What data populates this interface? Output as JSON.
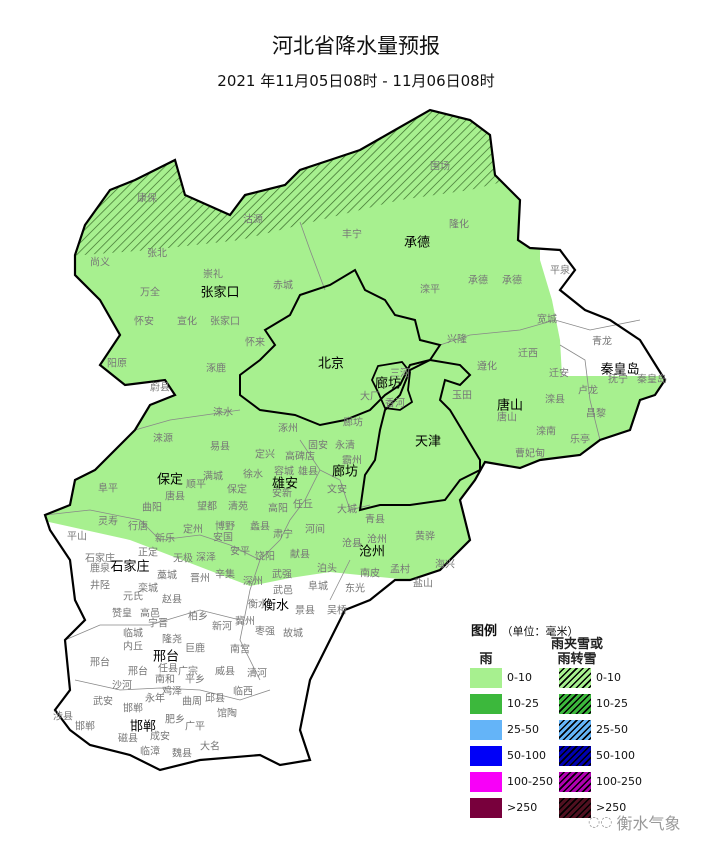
{
  "title": "河北省降水量预报",
  "subtitle": "2021 年11月05日08时 - 11月06日08时",
  "colors": {
    "rain_0_10": "#a7f08f",
    "outline": "#000000",
    "county_text": "#777777",
    "no_rain": "#ffffff"
  },
  "city_labels": [
    "张家口",
    "承德",
    "北京",
    "廊坊",
    "天津",
    "唐山",
    "秦皇岛",
    "保定",
    "雄安",
    "廊坊",
    "沧州",
    "石家庄",
    "衡水",
    "邢台",
    "邯郸"
  ],
  "county_labels": [
    "康保",
    "沽源",
    "尚义",
    "张北",
    "崇礼",
    "万全",
    "赤城",
    "怀安",
    "宣化",
    "张家口",
    "怀来",
    "阳原",
    "涿鹿",
    "蔚县",
    "丰宁",
    "围场",
    "隆化",
    "承德",
    "承德",
    "滦平",
    "平泉",
    "宽城",
    "兴隆",
    "青龙",
    "迁西",
    "遵化",
    "迁安",
    "抚宁",
    "秦皇岛",
    "玉田",
    "卢龙",
    "滦县",
    "唐山",
    "昌黎",
    "滦南",
    "乐亭",
    "曹妃甸",
    "三河",
    "大厂",
    "香河",
    "涞水",
    "涿州",
    "廊坊",
    "涞源",
    "易县",
    "定兴",
    "高碑店",
    "固安",
    "永清",
    "霸州",
    "满城",
    "徐水",
    "容城",
    "雄县",
    "阜平",
    "唐县",
    "顺平",
    "保定",
    "安新",
    "文安",
    "曲阳",
    "望都",
    "清苑",
    "高阳",
    "任丘",
    "大城",
    "青县",
    "灵寿",
    "行唐",
    "定州",
    "博野",
    "蠡县",
    "河间",
    "平山",
    "新乐",
    "安国",
    "肃宁",
    "沧县",
    "沧州",
    "黄骅",
    "正定",
    "无极",
    "深泽",
    "安平",
    "饶阳",
    "献县",
    "海兴",
    "石家庄",
    "鹿泉",
    "藁城",
    "晋州",
    "辛集",
    "深州",
    "武强",
    "泊头",
    "南皮",
    "孟村",
    "盐山",
    "阜城",
    "东光",
    "井陉",
    "栾城",
    "元氏",
    "赵县",
    "武邑",
    "衡水",
    "景县",
    "吴桥",
    "赞皇",
    "高邑",
    "柏乡",
    "宁晋",
    "新河",
    "冀州",
    "枣强",
    "故城",
    "临城",
    "隆尧",
    "内丘",
    "巨鹿",
    "南宫",
    "邢台",
    "邢台",
    "任县",
    "广宗",
    "威县",
    "清河",
    "南和",
    "平乡",
    "沙河",
    "鸡泽",
    "临西",
    "武安",
    "永年",
    "邯郸",
    "曲周",
    "邱县",
    "馆陶",
    "涉县",
    "肥乡",
    "广平",
    "邯郸",
    "磁县",
    "成安",
    "大名",
    "临漳",
    "魏县"
  ],
  "legend": {
    "title": "图例",
    "unit": "（单位：毫米）",
    "rain_header": "雨",
    "sleet_header_1": "雨夹雪或",
    "sleet_header_2": "雨转雪",
    "items": [
      {
        "label": "0-10",
        "color": "#a7f08f"
      },
      {
        "label": "10-25",
        "color": "#3cb83c"
      },
      {
        "label": "25-50",
        "color": "#64b4f8"
      },
      {
        "label": "50-100",
        "color": "#0000f8"
      },
      {
        "label": "100-250",
        "color": "#f800f8"
      },
      {
        "label": ">250",
        "color": "#78003c"
      }
    ],
    "sleet_items": [
      {
        "label": "0-10",
        "color": "#a7f08f"
      },
      {
        "label": "10-25",
        "color": "#3cb83c"
      },
      {
        "label": "25-50",
        "color": "#64b4f8"
      },
      {
        "label": "50-100",
        "color": "#0000b0"
      },
      {
        "label": "100-250",
        "color": "#b000b0"
      },
      {
        "label": ">250",
        "color": "#501020"
      }
    ]
  },
  "watermark": "衡水气象"
}
